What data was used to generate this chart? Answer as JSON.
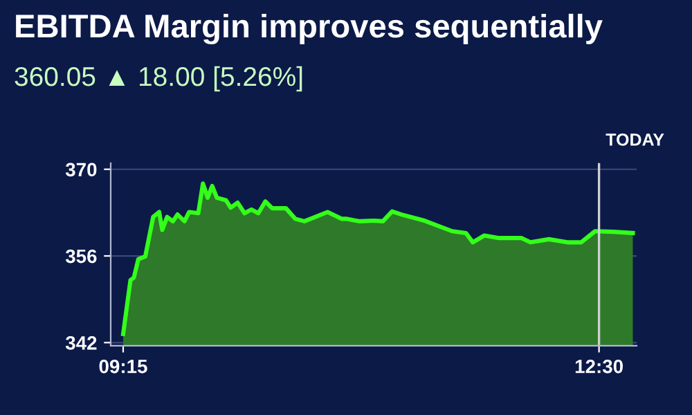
{
  "chart_data": {
    "type": "area",
    "title": "EBITDA Margin improves sequentially",
    "subtitle": "360.05 ▲ 18.00 [5.26%]",
    "annotations": [
      "TODAY"
    ],
    "x": [
      9.25,
      9.3,
      9.323,
      9.354,
      9.401,
      9.455,
      9.496,
      9.517,
      9.55,
      9.59,
      9.621,
      9.669,
      9.701,
      9.763,
      9.795,
      9.827,
      9.858,
      9.89,
      9.952,
      9.984,
      10.032,
      10.079,
      10.126,
      10.173,
      10.221,
      10.268,
      10.362,
      10.425,
      10.488,
      10.551,
      10.646,
      10.741,
      10.772,
      10.866,
      10.961,
      11.024,
      11.087,
      11.15,
      11.308,
      11.497,
      11.591,
      11.638,
      11.717,
      11.811,
      11.969,
      12.032,
      12.158,
      12.284,
      12.378,
      12.473,
      12.599,
      12.731
    ],
    "series": [
      {
        "color": "#33ff1a",
        "values": [
          343.4,
          352.1,
          352.5,
          355.5,
          355.9,
          362.3,
          363.1,
          360.2,
          362.3,
          361.6,
          362.7,
          361.6,
          363.1,
          362.9,
          367.7,
          365.4,
          367.3,
          365.4,
          365.0,
          363.8,
          364.6,
          362.9,
          363.5,
          362.9,
          364.8,
          363.7,
          363.7,
          362.0,
          361.6,
          362.2,
          363.1,
          362.0,
          362.0,
          361.6,
          361.7,
          361.6,
          363.2,
          362.7,
          361.7,
          360.0,
          359.7,
          358.2,
          359.3,
          358.9,
          358.9,
          358.2,
          358.7,
          358.2,
          358.2,
          360.0,
          359.9,
          359.7
        ]
      }
    ],
    "xlim": [
      9.165,
      12.757
    ],
    "xticks": [
      {
        "value": 9.25,
        "label": "09:15"
      },
      {
        "value": 12.5,
        "label": "12:30"
      }
    ],
    "ylim": [
      341.5,
      371
    ],
    "yticks": [
      342,
      356,
      370
    ],
    "ref_lines": [
      {
        "axis": "x",
        "value": 12.5,
        "color": "#d0d0d0"
      }
    ],
    "grid": "y"
  }
}
